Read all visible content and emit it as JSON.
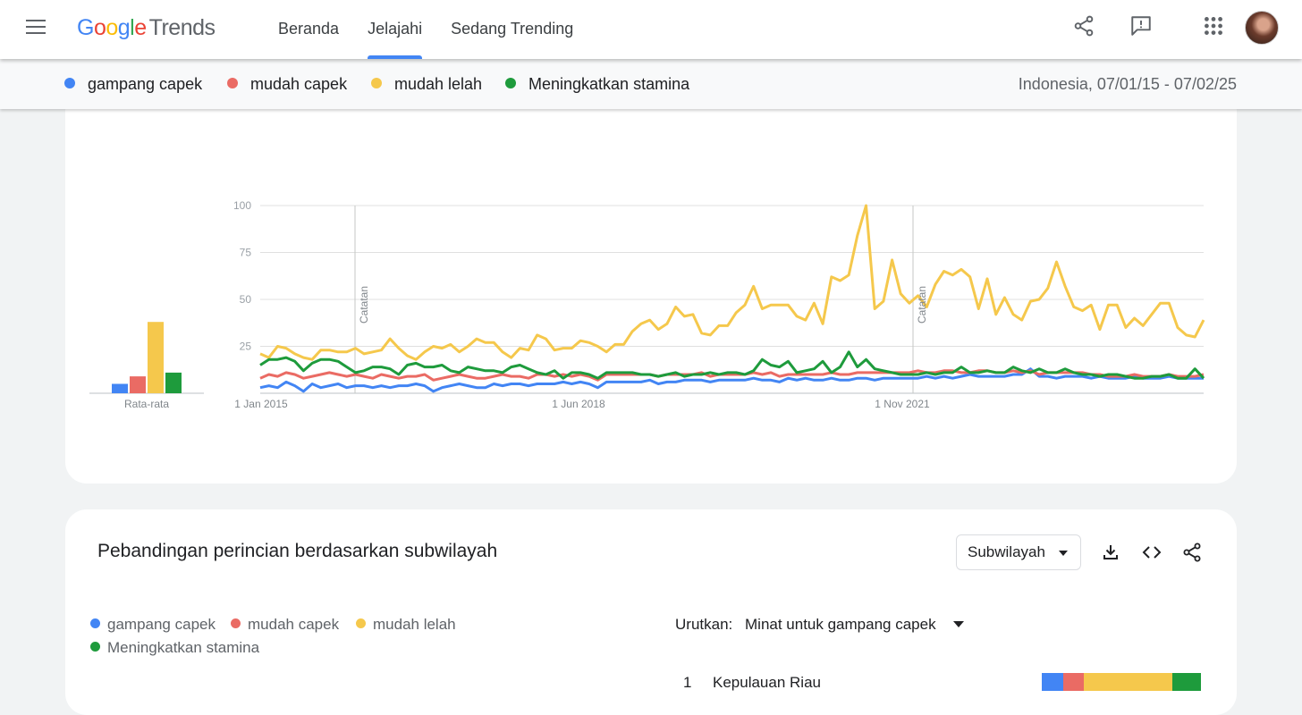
{
  "header": {
    "logo": {
      "g": "G",
      "o1": "o",
      "o2": "o",
      "g2": "g",
      "l": "l",
      "e": "e",
      "trends": "Trends"
    },
    "nav": [
      {
        "label": "Beranda"
      },
      {
        "label": "Jelajahi",
        "active": true
      },
      {
        "label": "Sedang Trending"
      }
    ],
    "icons": [
      "menu-icon",
      "share-icon",
      "feedback-icon",
      "apps-grid-icon",
      "avatar"
    ]
  },
  "terms": [
    {
      "label": "gampang capek",
      "color": "#4285f4"
    },
    {
      "label": "mudah capek",
      "color": "#ea6b64"
    },
    {
      "label": "mudah lelah",
      "color": "#f5c84c"
    },
    {
      "label": "Meningkatkan stamina",
      "color": "#1e9b3c"
    }
  ],
  "date_range": "Indonesia, 07/01/15 - 07/02/25",
  "chart_data": {
    "type": "line",
    "title": "",
    "y_ticks": [
      "100",
      "75",
      "50",
      "25"
    ],
    "ylim": [
      0,
      100
    ],
    "x_tick_labels": [
      "1 Jan 2015",
      "1 Jun 2018",
      "1 Nov 2021"
    ],
    "annotations": [
      "Catatan",
      "Catatan"
    ],
    "average_label": "Rata-rata",
    "averages": {
      "gampang capek": 5,
      "mudah capek": 9,
      "mudah lelah": 38,
      "Meningkatkan stamina": 11
    },
    "series": [
      {
        "name": "gampang capek",
        "color": "#4285f4",
        "values": [
          3,
          4,
          3,
          6,
          4,
          1,
          5,
          3,
          4,
          5,
          3,
          4,
          4,
          3,
          4,
          3,
          4,
          4,
          5,
          4,
          1,
          3,
          4,
          5,
          4,
          3,
          3,
          5,
          4,
          5,
          5,
          4,
          5,
          5,
          5,
          6,
          5,
          6,
          5,
          3,
          6,
          6,
          6,
          6,
          6,
          7,
          5,
          6,
          6,
          7,
          7,
          7,
          6,
          7,
          7,
          7,
          7,
          8,
          7,
          7,
          6,
          8,
          7,
          8,
          7,
          7,
          8,
          7,
          7,
          8,
          8,
          7,
          8,
          8,
          8,
          8,
          8,
          9,
          8,
          9,
          8,
          9,
          10,
          9,
          9,
          9,
          9,
          10,
          10,
          13,
          9,
          9,
          8,
          9,
          9,
          9,
          8,
          9,
          8,
          8,
          8,
          9,
          8,
          8,
          8,
          9,
          8,
          8,
          8,
          8
        ]
      },
      {
        "name": "mudah capek",
        "color": "#ea6b64",
        "values": [
          8,
          10,
          9,
          11,
          10,
          8,
          9,
          10,
          11,
          10,
          9,
          10,
          9,
          8,
          10,
          9,
          8,
          9,
          9,
          10,
          7,
          8,
          9,
          10,
          9,
          8,
          8,
          9,
          10,
          9,
          9,
          8,
          10,
          10,
          9,
          10,
          9,
          10,
          9,
          7,
          10,
          10,
          10,
          10,
          10,
          10,
          9,
          10,
          10,
          10,
          10,
          11,
          9,
          10,
          10,
          10,
          10,
          11,
          10,
          11,
          9,
          10,
          10,
          10,
          10,
          10,
          11,
          10,
          10,
          11,
          11,
          11,
          11,
          11,
          11,
          11,
          12,
          11,
          11,
          12,
          12,
          11,
          11,
          12,
          12,
          11,
          11,
          12,
          11,
          12,
          10,
          11,
          11,
          11,
          11,
          11,
          10,
          10,
          9,
          9,
          9,
          10,
          9,
          9,
          9,
          10,
          9,
          9,
          9,
          10
        ]
      },
      {
        "name": "mudah lelah",
        "color": "#f5c84c",
        "values": [
          21,
          19,
          25,
          24,
          21,
          19,
          18,
          23,
          23,
          22,
          22,
          24,
          21,
          22,
          23,
          29,
          24,
          20,
          18,
          22,
          25,
          24,
          26,
          22,
          25,
          29,
          27,
          27,
          22,
          19,
          24,
          23,
          31,
          29,
          23,
          24,
          24,
          28,
          27,
          25,
          22,
          26,
          26,
          33,
          37,
          39,
          34,
          37,
          46,
          41,
          42,
          32,
          31,
          36,
          36,
          43,
          47,
          57,
          45,
          47,
          47,
          47,
          41,
          39,
          48,
          37,
          62,
          60,
          63,
          84,
          100,
          45,
          49,
          71,
          53,
          48,
          52,
          46,
          58,
          65,
          63,
          66,
          62,
          45,
          61,
          42,
          51,
          42,
          39,
          49,
          50,
          56,
          70,
          57,
          46,
          44,
          47,
          34,
          47,
          47,
          35,
          40,
          36,
          42,
          48,
          48,
          35,
          31,
          30,
          39
        ]
      },
      {
        "name": "Meningkatkan stamina",
        "color": "#1e9b3c",
        "values": [
          15,
          18,
          18,
          19,
          17,
          12,
          16,
          18,
          18,
          17,
          14,
          11,
          12,
          14,
          14,
          13,
          10,
          15,
          16,
          14,
          14,
          15,
          12,
          11,
          14,
          13,
          12,
          12,
          11,
          14,
          15,
          13,
          11,
          10,
          12,
          8,
          11,
          11,
          10,
          8,
          11,
          11,
          11,
          11,
          10,
          10,
          9,
          10,
          11,
          9,
          10,
          10,
          11,
          10,
          11,
          11,
          10,
          12,
          18,
          15,
          14,
          17,
          11,
          12,
          13,
          17,
          11,
          14,
          22,
          14,
          18,
          13,
          12,
          11,
          10,
          10,
          10,
          11,
          10,
          11,
          11,
          14,
          11,
          11,
          12,
          11,
          11,
          14,
          12,
          11,
          13,
          11,
          11,
          13,
          11,
          10,
          10,
          9,
          10,
          10,
          9,
          8,
          8,
          9,
          9,
          10,
          8,
          8,
          13,
          8
        ]
      }
    ]
  },
  "section2": {
    "title": "Pebandingan perincian berdasarkan subwilayah",
    "select_value": "Subwilayah",
    "sort_label": "Urutkan:",
    "sort_value": "Minat untuk gampang capek",
    "rows": [
      {
        "rank": "1",
        "name": "Kepulauan Riau",
        "shares": [
          0.13,
          0.13,
          0.54,
          0.18
        ]
      }
    ]
  }
}
